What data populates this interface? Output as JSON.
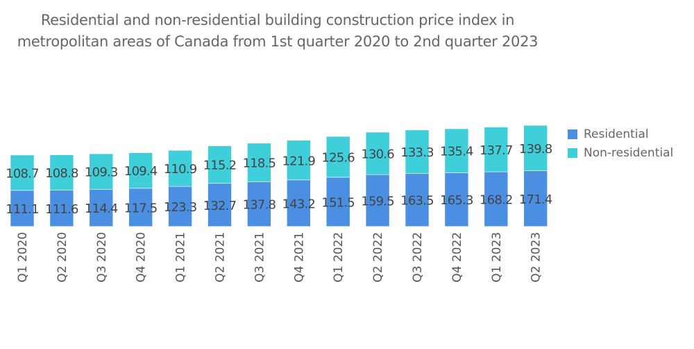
{
  "chart_data": {
    "type": "bar",
    "stacked": true,
    "title": "Residential and non-residential building construction price index in metropolitan areas of Canada from 1st quarter 2020 to 2nd quarter 2023",
    "title_lines": [
      "Residential and non-residential building construction price index in",
      "metropolitan areas of Canada from 1st quarter 2020 to 2nd quarter 2023"
    ],
    "xlabel": "",
    "ylabel": "",
    "categories": [
      "Q1 2020",
      "Q2 2020",
      "Q3 2020",
      "Q4 2020",
      "Q1 2021",
      "Q2 2021",
      "Q3 2021",
      "Q4 2021",
      "Q1 2022",
      "Q2 2022",
      "Q3 2022",
      "Q4 2022",
      "Q1 2023",
      "Q2 2023"
    ],
    "series": [
      {
        "name": "Residential",
        "color": "#4A8FE2",
        "values": [
          111.1,
          111.6,
          114.4,
          117.5,
          123.3,
          132.7,
          137.8,
          143.2,
          151.5,
          159.5,
          163.5,
          165.3,
          168.2,
          171.4
        ]
      },
      {
        "name": "Non-residential",
        "color": "#3ECFDA",
        "values": [
          108.7,
          108.8,
          109.3,
          109.4,
          110.9,
          115.2,
          118.5,
          121.9,
          125.6,
          130.6,
          133.3,
          135.4,
          137.7,
          139.8
        ]
      }
    ],
    "ylim": [
      0,
      320
    ],
    "grid": false,
    "y_axis_visible": false,
    "data_labels": true,
    "legend_position": "right"
  }
}
